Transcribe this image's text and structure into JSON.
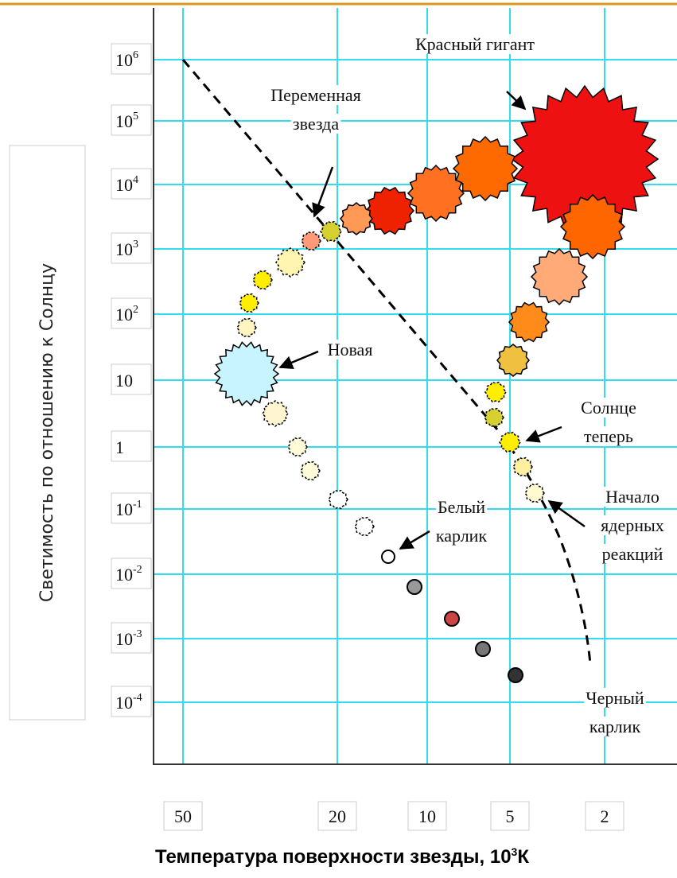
{
  "y_axis": {
    "title": "Светимость по отношению к Солнцу",
    "labels": [
      {
        "base": "10",
        "exp": "6"
      },
      {
        "base": "10",
        "exp": "5"
      },
      {
        "base": "10",
        "exp": "4"
      },
      {
        "base": "10",
        "exp": "3"
      },
      {
        "base": "10",
        "exp": "2"
      },
      {
        "base": "10"
      },
      {
        "base": "1"
      },
      {
        "base": "10",
        "exp": "-1"
      },
      {
        "base": "10",
        "exp": "-2"
      },
      {
        "base": "10",
        "exp": "-3"
      },
      {
        "base": "10",
        "exp": "-4"
      }
    ]
  },
  "x_axis": {
    "title": {
      "text": "Температура поверхности звезды, 10",
      "exp": "3",
      "unit": "К"
    },
    "labels": [
      "50",
      "20",
      "10",
      "5",
      "2"
    ]
  },
  "annotations": {
    "red_giant": "Красный гигант",
    "variable_star": [
      "Переменная",
      "звезда"
    ],
    "nova": "Новая",
    "sun_now": [
      "Солнце",
      "теперь"
    ],
    "nuclear_start": [
      "Начало",
      "ядерных",
      "реакций"
    ],
    "white_dwarf": [
      "Белый",
      "карлик"
    ],
    "black_dwarf": [
      "Черный",
      "карлик"
    ]
  }
}
